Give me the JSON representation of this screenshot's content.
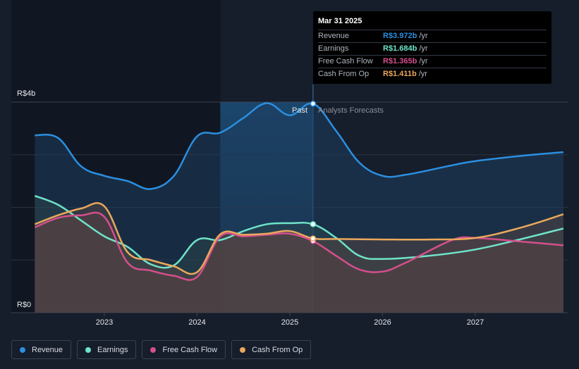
{
  "chart_data": {
    "type": "line",
    "currency_axis": {
      "top_label": "R$4b",
      "bottom_label": "R$0",
      "ylim": [
        0,
        4
      ]
    },
    "x_ticks": [
      "2023",
      "2024",
      "2025",
      "2026",
      "2027"
    ],
    "region_labels": {
      "past": "Past",
      "forecast": "Analysts Forecasts"
    },
    "series": [
      {
        "name": "Revenue",
        "color": "#2b8fe0",
        "points": [
          [
            2022.25,
            3.37
          ],
          [
            2022.5,
            3.32
          ],
          [
            2022.75,
            2.78
          ],
          [
            2023.0,
            2.6
          ],
          [
            2023.25,
            2.5
          ],
          [
            2023.5,
            2.35
          ],
          [
            2023.75,
            2.6
          ],
          [
            2024.0,
            3.35
          ],
          [
            2024.25,
            3.42
          ],
          [
            2024.5,
            3.7
          ],
          [
            2024.75,
            3.98
          ],
          [
            2025.0,
            3.75
          ],
          [
            2025.25,
            3.97
          ],
          [
            2025.5,
            3.45
          ],
          [
            2025.75,
            2.85
          ],
          [
            2026.0,
            2.6
          ],
          [
            2026.25,
            2.62
          ],
          [
            2026.75,
            2.8
          ],
          [
            2027.0,
            2.88
          ],
          [
            2027.5,
            2.98
          ],
          [
            2027.95,
            3.05
          ]
        ]
      },
      {
        "name": "Earnings",
        "color": "#6fe3c8",
        "points": [
          [
            2022.25,
            2.22
          ],
          [
            2022.5,
            2.05
          ],
          [
            2022.75,
            1.75
          ],
          [
            2023.0,
            1.45
          ],
          [
            2023.25,
            1.25
          ],
          [
            2023.5,
            0.92
          ],
          [
            2023.75,
            0.9
          ],
          [
            2024.0,
            1.38
          ],
          [
            2024.25,
            1.38
          ],
          [
            2024.5,
            1.55
          ],
          [
            2024.75,
            1.68
          ],
          [
            2025.0,
            1.7
          ],
          [
            2025.25,
            1.68
          ],
          [
            2025.5,
            1.42
          ],
          [
            2025.75,
            1.08
          ],
          [
            2026.0,
            1.02
          ],
          [
            2026.5,
            1.08
          ],
          [
            2027.0,
            1.2
          ],
          [
            2027.5,
            1.4
          ],
          [
            2027.95,
            1.6
          ]
        ]
      },
      {
        "name": "Free Cash Flow",
        "color": "#d44f8c",
        "points": [
          [
            2022.25,
            1.62
          ],
          [
            2022.5,
            1.8
          ],
          [
            2022.75,
            1.85
          ],
          [
            2023.0,
            1.82
          ],
          [
            2023.25,
            0.95
          ],
          [
            2023.5,
            0.8
          ],
          [
            2023.75,
            0.7
          ],
          [
            2024.0,
            0.68
          ],
          [
            2024.25,
            1.45
          ],
          [
            2024.5,
            1.45
          ],
          [
            2024.75,
            1.48
          ],
          [
            2025.0,
            1.5
          ],
          [
            2025.25,
            1.36
          ],
          [
            2025.5,
            1.08
          ],
          [
            2025.75,
            0.82
          ],
          [
            2026.0,
            0.78
          ],
          [
            2026.25,
            0.95
          ],
          [
            2026.75,
            1.38
          ],
          [
            2027.0,
            1.42
          ],
          [
            2027.5,
            1.35
          ],
          [
            2027.95,
            1.28
          ]
        ]
      },
      {
        "name": "Cash From Op",
        "color": "#e9a85c",
        "points": [
          [
            2022.25,
            1.68
          ],
          [
            2022.5,
            1.85
          ],
          [
            2022.75,
            1.98
          ],
          [
            2023.0,
            2.02
          ],
          [
            2023.25,
            1.15
          ],
          [
            2023.5,
            1.0
          ],
          [
            2023.75,
            0.88
          ],
          [
            2024.0,
            0.77
          ],
          [
            2024.25,
            1.49
          ],
          [
            2024.5,
            1.48
          ],
          [
            2024.75,
            1.5
          ],
          [
            2025.0,
            1.55
          ],
          [
            2025.25,
            1.41
          ],
          [
            2025.5,
            1.4
          ],
          [
            2026.0,
            1.39
          ],
          [
            2026.5,
            1.39
          ],
          [
            2027.0,
            1.42
          ],
          [
            2027.5,
            1.62
          ],
          [
            2027.95,
            1.87
          ]
        ]
      }
    ],
    "tooltip": {
      "date": "Mar 31 2025",
      "rows": [
        {
          "label": "Revenue",
          "value": "R$3.972b",
          "unit": "/yr",
          "color": "#2b8fe0"
        },
        {
          "label": "Earnings",
          "value": "R$1.684b",
          "unit": "/yr",
          "color": "#6fe3c8"
        },
        {
          "label": "Free Cash Flow",
          "value": "R$1.365b",
          "unit": "/yr",
          "color": "#d44f8c"
        },
        {
          "label": "Cash From Op",
          "value": "R$1.411b",
          "unit": "/yr",
          "color": "#e9a85c"
        }
      ]
    },
    "legend": [
      {
        "label": "Revenue",
        "color": "#2b8fe0"
      },
      {
        "label": "Earnings",
        "color": "#6fe3c8"
      },
      {
        "label": "Free Cash Flow",
        "color": "#d44f8c"
      },
      {
        "label": "Cash From Op",
        "color": "#e9a85c"
      }
    ]
  }
}
